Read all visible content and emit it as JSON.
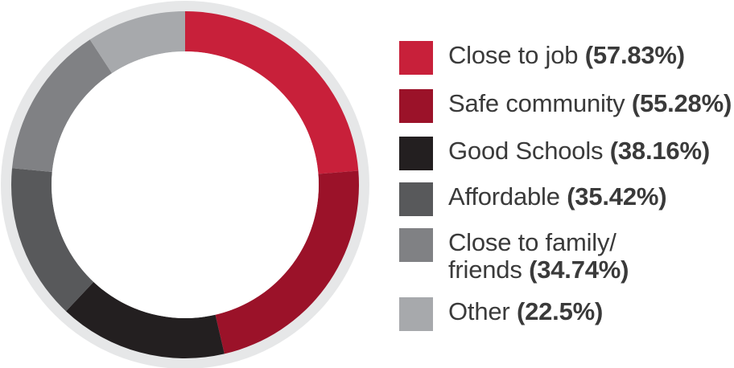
{
  "chart_data": {
    "type": "pie",
    "style": "donut",
    "categories": [
      "Close to job",
      "Safe community",
      "Good Schools",
      "Affordable",
      "Close to family/ friends",
      "Other"
    ],
    "values": [
      57.83,
      55.28,
      38.16,
      35.42,
      34.74,
      22.5
    ],
    "value_labels": [
      "(57.83%)",
      "(55.28%)",
      "(38.16%)",
      "(35.42%)",
      "(34.74%)",
      "(22.5%)"
    ],
    "colors": [
      "#c8203a",
      "#9b1229",
      "#231f20",
      "#58595b",
      "#808184",
      "#a7a9ac"
    ],
    "ring_color": "#e6e7e8",
    "legend_position": "right",
    "legend": [
      {
        "name": "Close to job",
        "pct": "(57.83%)"
      },
      {
        "name": "Safe community",
        "pct": "(55.28%)"
      },
      {
        "name": "Good Schools",
        "pct": "(38.16%)"
      },
      {
        "name": "Affordable",
        "pct": "(35.42%)"
      },
      {
        "name_line1": "Close to family/",
        "name_line2": "friends",
        "pct": "(34.74%)"
      },
      {
        "name": "Other",
        "pct": "(22.5%)"
      }
    ]
  }
}
